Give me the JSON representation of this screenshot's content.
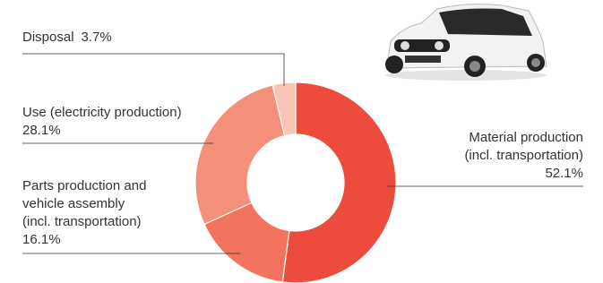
{
  "chart_data": {
    "type": "donut",
    "categories": [
      "Material production\n(incl. transportation)",
      "Parts production and\nvehicle assembly\n(incl. transportation)",
      "Use (electricity production)",
      "Disposal"
    ],
    "values": [
      52.1,
      16.1,
      28.1,
      3.7
    ],
    "value_labels": [
      "52.1%",
      "16.1%",
      "28.1%",
      "3.7%"
    ],
    "colors": [
      "#ee4b3f",
      "#f3735f",
      "#f48f79",
      "#f8c5b4"
    ]
  }
}
